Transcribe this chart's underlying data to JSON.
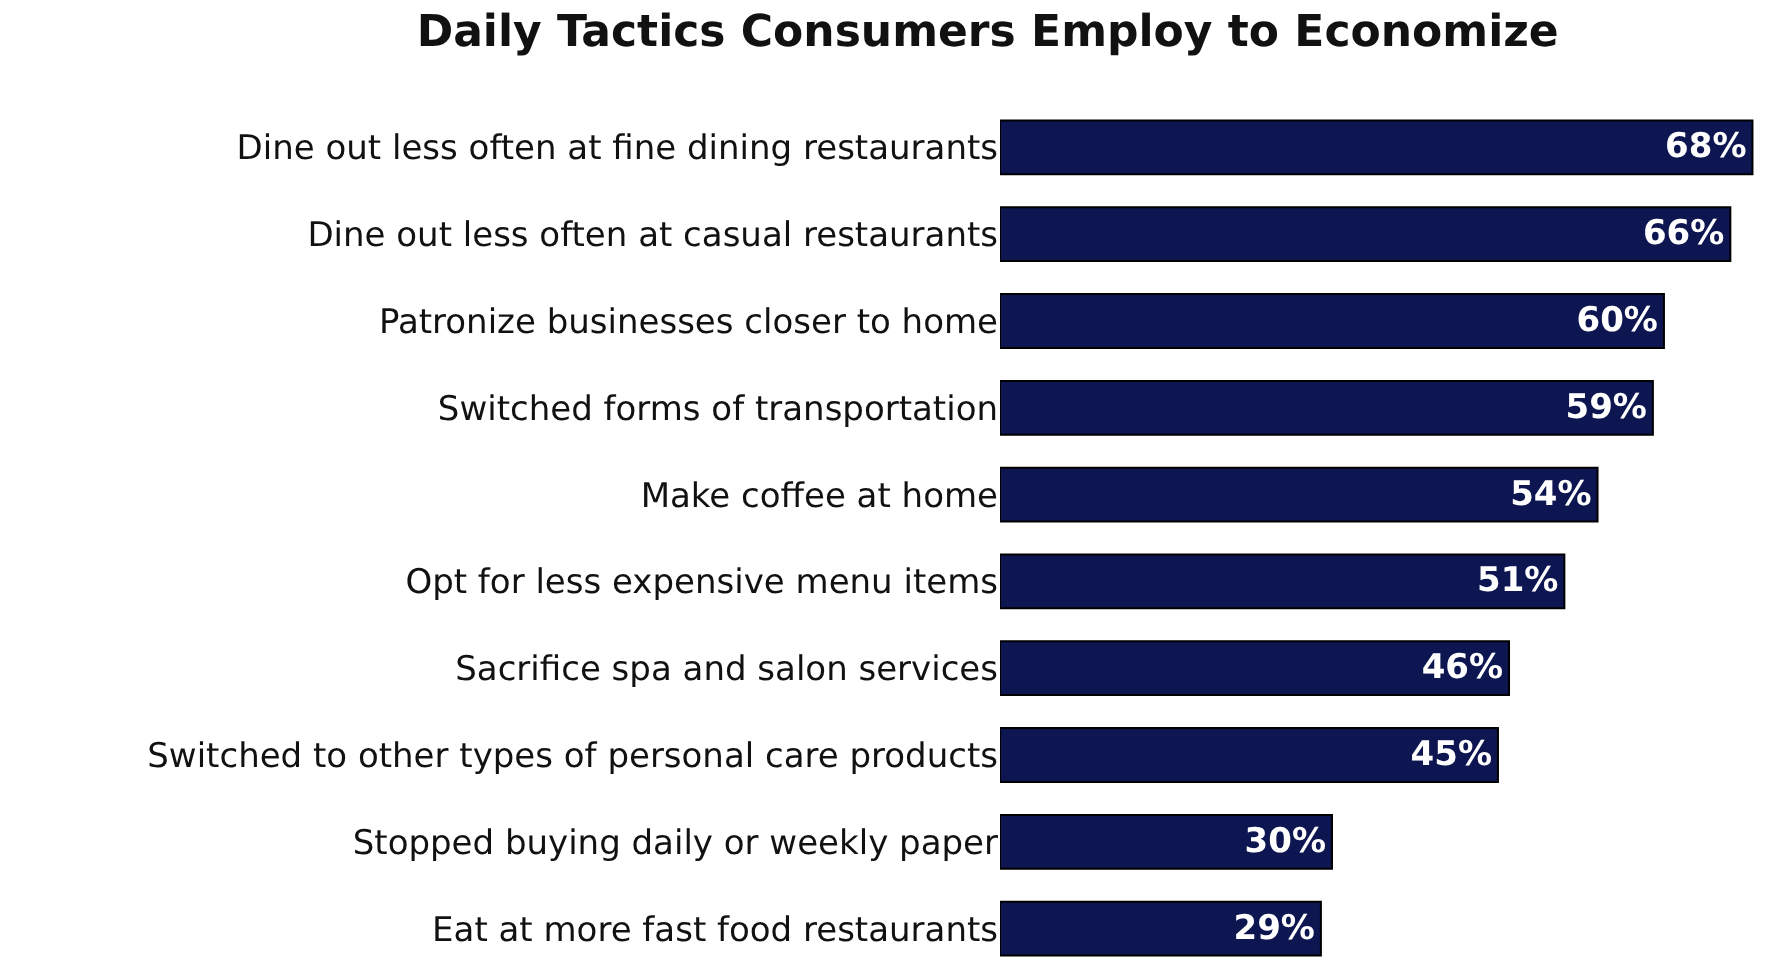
{
  "chart_data": {
    "type": "bar",
    "orientation": "horizontal",
    "title": "Daily Tactics Consumers Employ to Economize",
    "categories": [
      "Dine out less often at fine dining restaurants",
      "Dine out less often at casual restaurants",
      "Patronize businesses closer to home",
      "Switched forms of transportation",
      "Make coffee at home",
      "Opt for less expensive menu items",
      "Sacrifice spa and salon services",
      "Switched to other types of personal care products",
      "Stopped buying daily or weekly paper",
      "Eat at more fast food restaurants"
    ],
    "values": [
      68,
      66,
      60,
      59,
      54,
      51,
      46,
      45,
      30,
      29
    ],
    "value_labels": [
      "68%",
      "66%",
      "60%",
      "59%",
      "54%",
      "51%",
      "46%",
      "45%",
      "30%",
      "29%"
    ],
    "color": "#0d1650",
    "xlim": [
      0,
      68.5
    ]
  }
}
